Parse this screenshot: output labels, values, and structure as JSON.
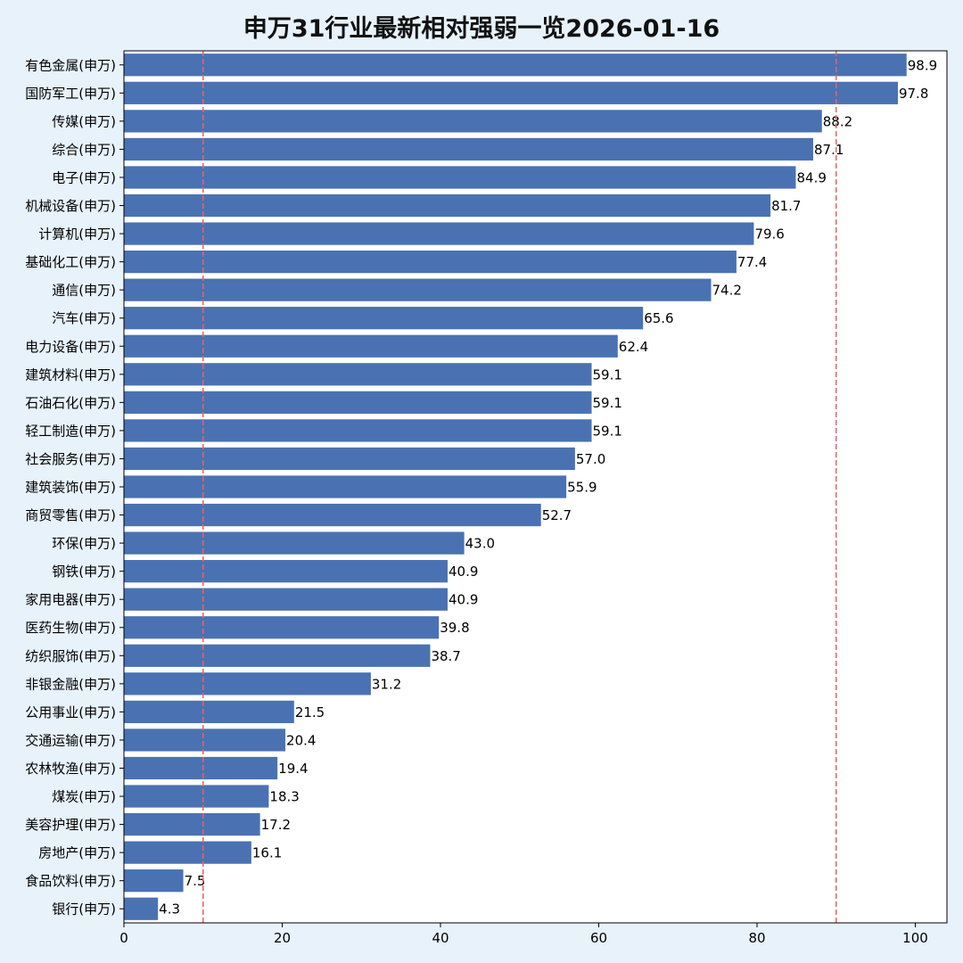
{
  "chart_data": {
    "type": "bar",
    "orientation": "horizontal",
    "title": "申万31行业最新相对强弱一览2026-01-16",
    "xlabel": "",
    "ylabel": "",
    "xlim": [
      0,
      104
    ],
    "xticks": [
      0,
      20,
      40,
      60,
      80,
      100
    ],
    "grid": false,
    "reference_lines": [
      10,
      90
    ],
    "bar_color": "#4a72b2",
    "reference_line_color": "#f06060",
    "categories": [
      "有色金属(申万)",
      "国防军工(申万)",
      "传媒(申万)",
      "综合(申万)",
      "电子(申万)",
      "机械设备(申万)",
      "计算机(申万)",
      "基础化工(申万)",
      "通信(申万)",
      "汽车(申万)",
      "电力设备(申万)",
      "建筑材料(申万)",
      "石油石化(申万)",
      "轻工制造(申万)",
      "社会服务(申万)",
      "建筑装饰(申万)",
      "商贸零售(申万)",
      "环保(申万)",
      "钢铁(申万)",
      "家用电器(申万)",
      "医药生物(申万)",
      "纺织服饰(申万)",
      "非银金融(申万)",
      "公用事业(申万)",
      "交通运输(申万)",
      "农林牧渔(申万)",
      "煤炭(申万)",
      "美容护理(申万)",
      "房地产(申万)",
      "食品饮料(申万)",
      "银行(申万)"
    ],
    "values": [
      98.9,
      97.8,
      88.2,
      87.1,
      84.9,
      81.7,
      79.6,
      77.4,
      74.2,
      65.6,
      62.4,
      59.1,
      59.1,
      59.1,
      57.0,
      55.9,
      52.7,
      43.0,
      40.9,
      40.9,
      39.8,
      38.7,
      31.2,
      21.5,
      20.4,
      19.4,
      18.3,
      17.2,
      16.1,
      7.5,
      4.3
    ],
    "value_labels": [
      "98.9",
      "97.8",
      "88.2",
      "87.1",
      "84.9",
      "81.7",
      "79.6",
      "77.4",
      "74.2",
      "65.6",
      "62.4",
      "59.1",
      "59.1",
      "59.1",
      "57.0",
      "55.9",
      "52.7",
      "43.0",
      "40.9",
      "40.9",
      "39.8",
      "38.7",
      "31.2",
      "21.5",
      "20.4",
      "19.4",
      "18.3",
      "17.2",
      "16.1",
      "7.5",
      "4.3"
    ]
  }
}
